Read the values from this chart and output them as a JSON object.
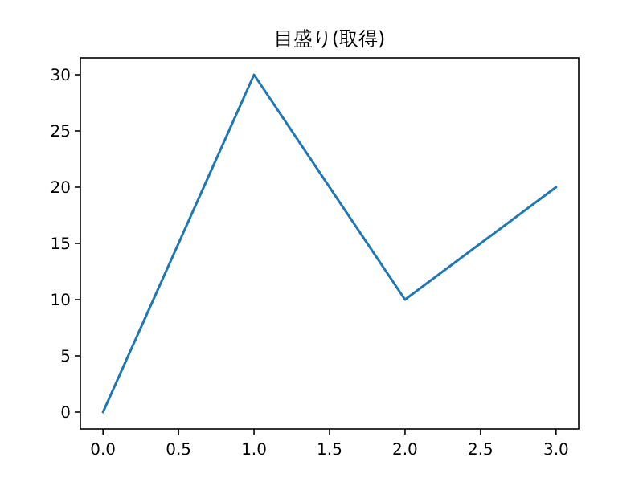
{
  "chart_data": {
    "type": "line",
    "title": "目盛り(取得)",
    "x": [
      0,
      1,
      2,
      3
    ],
    "values": [
      0,
      30,
      10,
      20
    ],
    "color": "#1f77b4",
    "xlim": [
      -0.15,
      3.15
    ],
    "ylim": [
      -1.5,
      31.5
    ],
    "xticks": [
      {
        "value": 0,
        "label": "0.0"
      },
      {
        "value": 0.5,
        "label": "0.5"
      },
      {
        "value": 1,
        "label": "1.0"
      },
      {
        "value": 1.5,
        "label": "1.5"
      },
      {
        "value": 2,
        "label": "2.0"
      },
      {
        "value": 2.5,
        "label": "2.5"
      },
      {
        "value": 3,
        "label": "3.0"
      }
    ],
    "yticks": [
      0,
      5,
      10,
      15,
      20,
      25,
      30
    ]
  }
}
